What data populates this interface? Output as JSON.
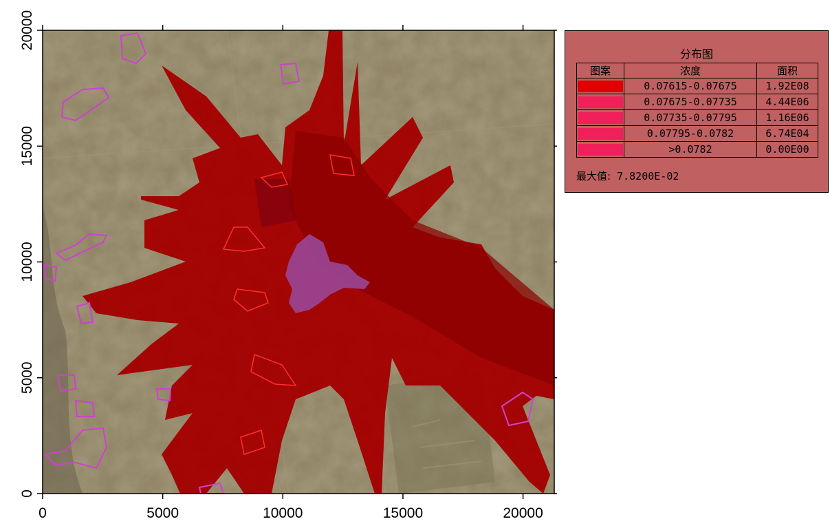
{
  "map": {
    "x_axis": {
      "min": 0,
      "max": 21300,
      "ticks": [
        0,
        5000,
        10000,
        15000,
        20000
      ]
    },
    "y_axis": {
      "min": 0,
      "max": 20000,
      "ticks": [
        0,
        5000,
        10000,
        15000,
        20000
      ]
    },
    "background": "satellite-imagery",
    "plume_color": "#a30000",
    "source_area_color": "#9a4aa0",
    "site_outline_color": "#d040d0"
  },
  "legend": {
    "title": "分布图",
    "headers": {
      "pattern": "图案",
      "concentration": "浓度",
      "area": "面积"
    },
    "rows": [
      {
        "concentration": "0.07615-0.07675",
        "area": "1.92E08",
        "color": "#e00000"
      },
      {
        "concentration": "0.07675-0.07735",
        "area": "4.44E06",
        "color": "#f0205a"
      },
      {
        "concentration": "0.07735-0.07795",
        "area": "1.16E06",
        "color": "#f0205a"
      },
      {
        "concentration": "0.07795-0.0782",
        "area": "6.74E04",
        "color": "#f0205a"
      },
      {
        "concentration": ">0.0782",
        "area": "0.00E00",
        "color": "#f0205a"
      }
    ],
    "max_label": "最大值:",
    "max_value": "7.8200E-02"
  }
}
